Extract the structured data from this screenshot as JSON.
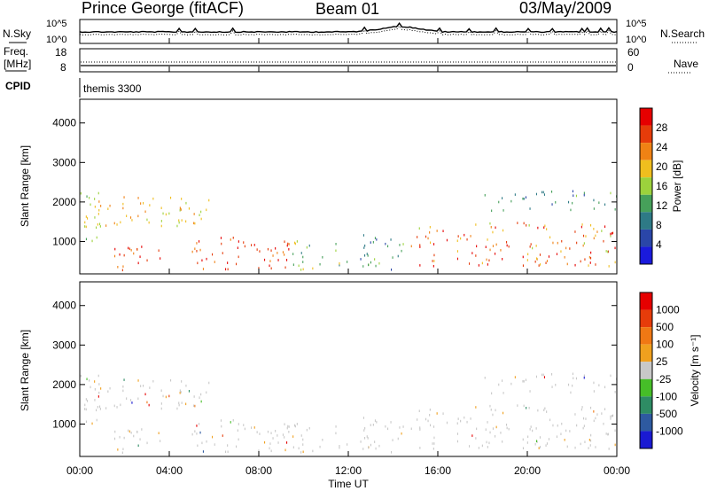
{
  "header": {
    "station": "Prince George (fitACF)",
    "beam": "Beam 01",
    "date": "03/May/2009"
  },
  "left_labels": {
    "nsky": "N.Sky",
    "nsky_hi": "10^5",
    "nsky_lo": "10^0",
    "freq_line1": "Freq.",
    "freq_line2": "[MHz]",
    "freq_hi": "18",
    "freq_lo": "8",
    "cpid": "CPID"
  },
  "right_labels": {
    "nsearch": "N.Search",
    "nsearch_hi": "10^5",
    "nsearch_lo": "10^0",
    "nave_hi": "60",
    "nave_lo": "0",
    "nave": "Nave"
  },
  "cpid_text": "themis 3300",
  "x_axis": {
    "ticks": [
      "00:00",
      "04:00",
      "08:00",
      "12:00",
      "16:00",
      "20:00",
      "00:00"
    ],
    "label": "Time UT"
  },
  "panels": {
    "power": {
      "ylabel": "Slant Range [km]",
      "yticks": [
        "1000",
        "2000",
        "3000",
        "4000"
      ],
      "cbar_title": "Power [dB]",
      "cbar_labels": [
        "4",
        "8",
        "12",
        "16",
        "20",
        "24",
        "28"
      ]
    },
    "velocity": {
      "ylabel": "Slant Range [km]",
      "yticks": [
        "1000",
        "2000",
        "3000",
        "4000"
      ],
      "cbar_title": "Velocity [m s⁻¹]",
      "cbar_labels": [
        "1000",
        "500",
        "100",
        "25",
        "-25",
        "-100",
        "-500",
        "-1000"
      ]
    }
  },
  "colors": {
    "power_scale": [
      "#1a1adc",
      "#2a46a8",
      "#2e7a86",
      "#46a05a",
      "#9cd23c",
      "#f0be1e",
      "#f08214",
      "#e63c0a",
      "#e60000"
    ],
    "velocity_scale": [
      "#1a1ad2",
      "#2e5aa0",
      "#2e8c64",
      "#46be28",
      "#c8c8c8",
      "#f0a01e",
      "#f07814",
      "#e63c0a",
      "#e60000"
    ]
  },
  "chart_data": [
    {
      "type": "heatmap",
      "name": "power",
      "xlabel": "Time UT",
      "ylabel": "Slant Range [km]",
      "xlim": [
        0,
        24
      ],
      "ylim": [
        180,
        4600
      ],
      "colorbar": {
        "label": "Power [dB]",
        "range": [
          0,
          30
        ],
        "ticks": [
          4,
          8,
          12,
          16,
          20,
          24,
          28
        ]
      },
      "echo_regions": [
        {
          "t": [
            0.0,
            1.0
          ],
          "range_km": [
            1000,
            2300
          ],
          "power_db": [
            10,
            20
          ]
        },
        {
          "t": [
            1.5,
            4.0
          ],
          "range_km": [
            300,
            900
          ],
          "power_db": [
            20,
            30
          ]
        },
        {
          "t": [
            0.2,
            6.0
          ],
          "range_km": [
            1400,
            2200
          ],
          "power_db": [
            14,
            22
          ]
        },
        {
          "t": [
            5.0,
            9.5
          ],
          "range_km": [
            300,
            1200
          ],
          "power_db": [
            20,
            30
          ]
        },
        {
          "t": [
            9.5,
            12.0
          ],
          "range_km": [
            300,
            1100
          ],
          "power_db": [
            8,
            18
          ]
        },
        {
          "t": [
            12.5,
            14.5
          ],
          "range_km": [
            300,
            1200
          ],
          "power_db": [
            4,
            14
          ]
        },
        {
          "t": [
            14.8,
            24.0
          ],
          "range_km": [
            400,
            1500
          ],
          "power_db": [
            16,
            30
          ]
        },
        {
          "t": [
            18.0,
            24.0
          ],
          "range_km": [
            1800,
            2300
          ],
          "power_db": [
            6,
            14
          ]
        }
      ]
    },
    {
      "type": "heatmap",
      "name": "velocity",
      "xlabel": "Time UT",
      "ylabel": "Slant Range [km]",
      "xlim": [
        0,
        24
      ],
      "ylim": [
        180,
        4600
      ],
      "colorbar": {
        "label": "Velocity [m s⁻¹]",
        "ticks": [
          1000,
          500,
          100,
          25,
          -25,
          -100,
          -500,
          -1000
        ]
      },
      "echo_regions": [
        {
          "t": [
            0.0,
            6.0
          ],
          "range_km": [
            300,
            2300
          ],
          "velocity_ms": [
            -25,
            25
          ]
        },
        {
          "t": [
            5.0,
            12.0
          ],
          "range_km": [
            300,
            1200
          ],
          "velocity_ms": [
            -25,
            25
          ]
        },
        {
          "t": [
            14.8,
            24.0
          ],
          "range_km": [
            300,
            1600
          ],
          "velocity_ms": [
            -25,
            25
          ]
        }
      ]
    }
  ]
}
